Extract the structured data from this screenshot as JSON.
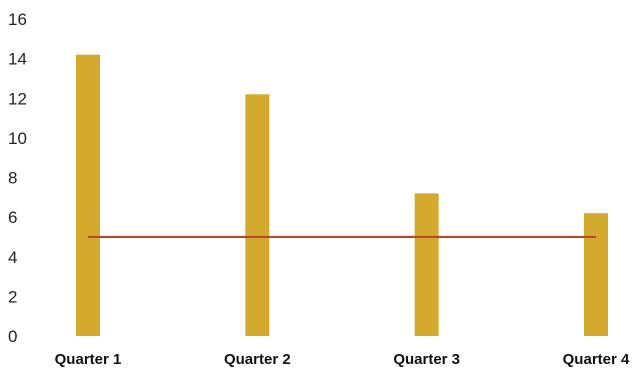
{
  "chart_data": {
    "type": "bar",
    "categories": [
      "Quarter 1",
      "Quarter 2",
      "Quarter 3",
      "Quarter 4"
    ],
    "series": [
      {
        "type": "bar",
        "values": [
          14.2,
          12.2,
          7.2,
          6.2
        ]
      },
      {
        "type": "line",
        "values": [
          5,
          5,
          5,
          5
        ]
      }
    ],
    "yticks": [
      "0",
      "2",
      "4",
      "6",
      "8",
      "10",
      "12",
      "14",
      "16"
    ],
    "ylim": [
      0,
      16
    ],
    "grid": false,
    "legend": "none",
    "title": "",
    "xlabel": "",
    "ylabel": "",
    "colors": {
      "bar": "#D4AA2E",
      "line": "#B5472B",
      "text": "#222222"
    }
  }
}
